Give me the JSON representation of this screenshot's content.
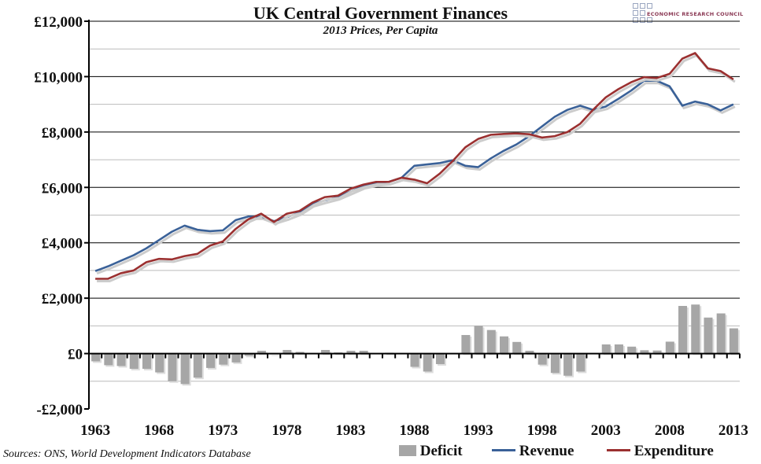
{
  "chart_data": {
    "type": "bar+line",
    "title": "UK Central Government Finances",
    "subtitle": "2013 Prices, Per Capita",
    "source": "Sources: ONS, World Development Indicators Database",
    "logo_text": "ECONOMIC RESEARCH COUNCIL",
    "ylim": [
      -2000,
      12000
    ],
    "y_ticks": [
      -2000,
      0,
      2000,
      4000,
      6000,
      8000,
      10000,
      12000
    ],
    "y_tick_labels": [
      "-£2,000",
      "£0",
      "£2,000",
      "£4,000",
      "£6,000",
      "£8,000",
      "£10,000",
      "£12,000"
    ],
    "x_tick_labels": [
      "1963",
      "1968",
      "1973",
      "1978",
      "1983",
      "1988",
      "1993",
      "1998",
      "2003",
      "2008",
      "2013"
    ],
    "grid": true,
    "legend": "bottom-right",
    "x": [
      1963,
      1964,
      1965,
      1966,
      1967,
      1968,
      1969,
      1970,
      1971,
      1972,
      1973,
      1974,
      1975,
      1976,
      1977,
      1978,
      1979,
      1980,
      1981,
      1982,
      1983,
      1984,
      1985,
      1986,
      1987,
      1988,
      1989,
      1990,
      1991,
      1992,
      1993,
      1994,
      1995,
      1996,
      1997,
      1998,
      1999,
      2000,
      2001,
      2002,
      2003,
      2004,
      2005,
      2006,
      2007,
      2008,
      2009,
      2010,
      2011,
      2012,
      2013
    ],
    "series": [
      {
        "name": "Deficit",
        "type": "bar",
        "color": "#a6a6a6",
        "values": [
          -280,
          -420,
          -450,
          -550,
          -550,
          -680,
          -1000,
          -1100,
          -870,
          -520,
          -400,
          -320,
          -80,
          100,
          -30,
          130,
          60,
          0,
          130,
          40,
          100,
          100,
          0,
          30,
          0,
          -480,
          -650,
          -380,
          0,
          670,
          1000,
          850,
          620,
          420,
          100,
          -400,
          -700,
          -800,
          -650,
          0,
          330,
          330,
          250,
          120,
          110,
          430,
          1720,
          1770,
          1300,
          1450,
          910
        ]
      },
      {
        "name": "Revenue",
        "type": "line",
        "color": "#3a6198",
        "values": [
          2980,
          3150,
          3350,
          3550,
          3800,
          4100,
          4400,
          4620,
          4470,
          4420,
          4450,
          4820,
          4950,
          4950,
          4780,
          4920,
          5100,
          5400,
          5530,
          5650,
          5850,
          6050,
          6150,
          6200,
          6350,
          6780,
          6830,
          6880,
          6980,
          6780,
          6730,
          7050,
          7320,
          7550,
          7850,
          8200,
          8550,
          8800,
          8950,
          8800,
          8920,
          9200,
          9500,
          9850,
          9850,
          9650,
          8950,
          9100,
          9000,
          8780,
          9000
        ]
      },
      {
        "name": "Expenditure",
        "type": "line",
        "color": "#9b3030",
        "values": [
          2700,
          2700,
          2900,
          3000,
          3300,
          3420,
          3400,
          3520,
          3600,
          3900,
          4050,
          4500,
          4850,
          5050,
          4750,
          5050,
          5150,
          5450,
          5650,
          5700,
          5950,
          6100,
          6200,
          6200,
          6350,
          6280,
          6150,
          6500,
          6950,
          7450,
          7750,
          7900,
          7930,
          7950,
          7920,
          7800,
          7850,
          8000,
          8300,
          8800,
          9250,
          9550,
          9800,
          9980,
          9950,
          10100,
          10650,
          10850,
          10300,
          10200,
          9900
        ]
      }
    ]
  }
}
